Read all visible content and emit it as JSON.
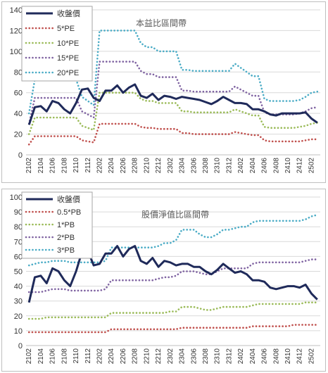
{
  "chart_data": [
    {
      "type": "line",
      "title": "本益比區間帶",
      "ylim": [
        0,
        140
      ],
      "yticks": [
        0,
        20,
        40,
        60,
        80,
        100,
        120,
        140
      ],
      "x": [
        "2102",
        "2103",
        "2104",
        "2105",
        "2106",
        "2107",
        "2108",
        "2109",
        "2110",
        "2111",
        "2112",
        "2201",
        "2202",
        "2203",
        "2204",
        "2205",
        "2206",
        "2207",
        "2208",
        "2209",
        "2210",
        "2211",
        "2212",
        "2301",
        "2302",
        "2303",
        "2304",
        "2305",
        "2306",
        "2307",
        "2308",
        "2309",
        "2310",
        "2311",
        "2312",
        "2401",
        "2402",
        "2403",
        "2404",
        "2405",
        "2406",
        "2407",
        "2408",
        "2409",
        "2410",
        "2411",
        "2412",
        "2501",
        "2502",
        "2503"
      ],
      "xtick_labels": [
        "2102",
        "2104",
        "2106",
        "2108",
        "2110",
        "2112",
        "2202",
        "2204",
        "2206",
        "2208",
        "2210",
        "2212",
        "2302",
        "2304",
        "2306",
        "2308",
        "2310",
        "2312",
        "2402",
        "2404",
        "2406",
        "2408",
        "2410",
        "2412",
        "2502"
      ],
      "legend_position": "top-left",
      "grid": "horizontal",
      "series": [
        {
          "name": "收盤價",
          "color": "#1f2a5a",
          "style": "solid",
          "values": [
            29,
            46,
            47,
            42,
            52,
            50,
            44,
            40,
            50,
            63,
            64,
            55,
            52,
            62,
            62,
            67,
            60,
            65,
            68,
            57,
            55,
            59,
            53,
            57,
            56,
            54,
            56,
            55,
            54,
            53,
            51,
            49,
            52,
            56,
            53,
            50,
            50,
            49,
            44,
            44,
            42,
            39,
            38,
            40,
            40,
            40,
            40,
            41,
            35,
            31
          ]
        },
        {
          "name": "5*PE",
          "color": "#c0504d",
          "style": "dotted",
          "values": [
            10,
            18,
            18,
            18,
            18,
            18,
            18,
            18,
            18,
            14,
            13,
            12,
            30,
            30,
            30,
            30,
            30,
            30,
            30,
            27,
            26,
            26,
            25,
            25,
            25,
            25,
            21,
            21,
            20,
            20,
            20,
            20,
            20,
            20,
            20,
            22,
            21,
            20,
            19,
            19,
            14,
            13,
            13,
            13,
            13,
            13,
            13,
            14,
            15,
            15
          ]
        },
        {
          "name": "10*PE",
          "color": "#9bbb59",
          "style": "dotted",
          "values": [
            20,
            36,
            36,
            36,
            36,
            36,
            36,
            36,
            36,
            28,
            26,
            24,
            60,
            60,
            60,
            60,
            60,
            60,
            60,
            54,
            52,
            52,
            50,
            50,
            50,
            50,
            42,
            42,
            41,
            41,
            41,
            41,
            41,
            41,
            41,
            44,
            42,
            40,
            38,
            38,
            27,
            26,
            26,
            26,
            26,
            26,
            27,
            28,
            30,
            31
          ]
        },
        {
          "name": "15*PE",
          "color": "#8064a2",
          "style": "dotted",
          "values": [
            30,
            55,
            55,
            55,
            55,
            55,
            55,
            55,
            55,
            42,
            39,
            36,
            90,
            90,
            90,
            90,
            90,
            90,
            90,
            81,
            78,
            78,
            75,
            75,
            75,
            75,
            62,
            62,
            61,
            61,
            61,
            61,
            61,
            61,
            61,
            66,
            63,
            60,
            57,
            57,
            41,
            39,
            39,
            39,
            39,
            39,
            40,
            42,
            45,
            46
          ]
        },
        {
          "name": "20*PE",
          "color": "#4bacc6",
          "style": "dotted",
          "values": [
            40,
            73,
            73,
            73,
            73,
            73,
            73,
            73,
            73,
            56,
            52,
            48,
            120,
            120,
            120,
            120,
            120,
            120,
            120,
            108,
            104,
            104,
            100,
            100,
            100,
            100,
            82,
            82,
            81,
            81,
            81,
            81,
            81,
            81,
            81,
            88,
            84,
            80,
            76,
            76,
            54,
            52,
            52,
            52,
            52,
            52,
            53,
            56,
            60,
            61
          ]
        }
      ]
    },
    {
      "type": "line",
      "title": "股價淨值比區間帶",
      "ylim": [
        0,
        100
      ],
      "yticks": [
        0,
        10,
        20,
        30,
        40,
        50,
        60,
        70,
        80,
        90,
        100
      ],
      "x": [
        "2102",
        "2103",
        "2104",
        "2105",
        "2106",
        "2107",
        "2108",
        "2109",
        "2110",
        "2111",
        "2112",
        "2201",
        "2202",
        "2203",
        "2204",
        "2205",
        "2206",
        "2207",
        "2208",
        "2209",
        "2210",
        "2211",
        "2212",
        "2301",
        "2302",
        "2303",
        "2304",
        "2305",
        "2306",
        "2307",
        "2308",
        "2309",
        "2310",
        "2311",
        "2312",
        "2401",
        "2402",
        "2403",
        "2404",
        "2405",
        "2406",
        "2407",
        "2408",
        "2409",
        "2410",
        "2411",
        "2412",
        "2501",
        "2502",
        "2503"
      ],
      "xtick_labels": [
        "2102",
        "2104",
        "2106",
        "2108",
        "2110",
        "2112",
        "2202",
        "2204",
        "2206",
        "2208",
        "2210",
        "2212",
        "2302",
        "2304",
        "2306",
        "2308",
        "2310",
        "2312",
        "2402",
        "2404",
        "2406",
        "2408",
        "2410",
        "2412",
        "2502"
      ],
      "legend_position": "top-left",
      "grid": "horizontal",
      "series": [
        {
          "name": "收盤價",
          "color": "#1f2a5a",
          "style": "solid",
          "values": [
            29,
            46,
            47,
            42,
            52,
            50,
            44,
            40,
            50,
            63,
            64,
            54,
            55,
            62,
            62,
            67,
            60,
            65,
            67,
            57,
            55,
            59,
            53,
            57,
            56,
            54,
            55,
            55,
            53,
            53,
            50,
            48,
            51,
            55,
            52,
            49,
            50,
            48,
            44,
            44,
            43,
            39,
            38,
            39,
            40,
            40,
            39,
            41,
            35,
            31
          ]
        },
        {
          "name": "0.5*PB",
          "color": "#c0504d",
          "style": "dotted",
          "values": [
            9,
            9,
            9,
            9,
            9,
            9,
            9,
            9,
            9,
            9,
            9,
            9,
            9,
            9,
            11,
            11,
            11,
            11,
            11,
            11,
            11,
            11,
            11,
            11,
            11,
            11,
            12,
            12,
            12,
            12,
            12,
            12,
            12,
            12,
            12,
            12,
            12,
            12,
            13,
            13,
            13,
            13,
            13,
            13,
            13,
            14,
            14,
            14,
            14,
            14
          ]
        },
        {
          "name": "1*PB",
          "color": "#9bbb59",
          "style": "dotted",
          "values": [
            18,
            18,
            18,
            19,
            19,
            19,
            19,
            19,
            19,
            19,
            19,
            19,
            19,
            19,
            22,
            22,
            22,
            22,
            22,
            22,
            22,
            22,
            22,
            22,
            23,
            23,
            26,
            26,
            26,
            25,
            24,
            24,
            25,
            26,
            26,
            26,
            26,
            26,
            27,
            28,
            28,
            28,
            28,
            28,
            28,
            28,
            28,
            29,
            29,
            29
          ]
        },
        {
          "name": "2*PB",
          "color": "#8064a2",
          "style": "dotted",
          "values": [
            36,
            36,
            36,
            37,
            38,
            38,
            38,
            37,
            37,
            37,
            37,
            37,
            37,
            38,
            44,
            44,
            44,
            44,
            44,
            44,
            44,
            44,
            45,
            46,
            46,
            47,
            50,
            50,
            50,
            49,
            48,
            48,
            50,
            52,
            52,
            52,
            52,
            52,
            55,
            56,
            56,
            56,
            56,
            56,
            56,
            56,
            56,
            57,
            58,
            58
          ]
        },
        {
          "name": "3*PB",
          "color": "#4bacc6",
          "style": "dotted",
          "values": [
            54,
            55,
            56,
            56,
            57,
            57,
            57,
            56,
            56,
            56,
            56,
            56,
            56,
            57,
            66,
            66,
            66,
            66,
            66,
            66,
            66,
            66,
            67,
            69,
            69,
            71,
            78,
            78,
            78,
            75,
            73,
            73,
            75,
            78,
            78,
            79,
            80,
            80,
            83,
            84,
            84,
            84,
            84,
            84,
            84,
            84,
            84,
            85,
            87,
            88
          ]
        }
      ]
    }
  ]
}
